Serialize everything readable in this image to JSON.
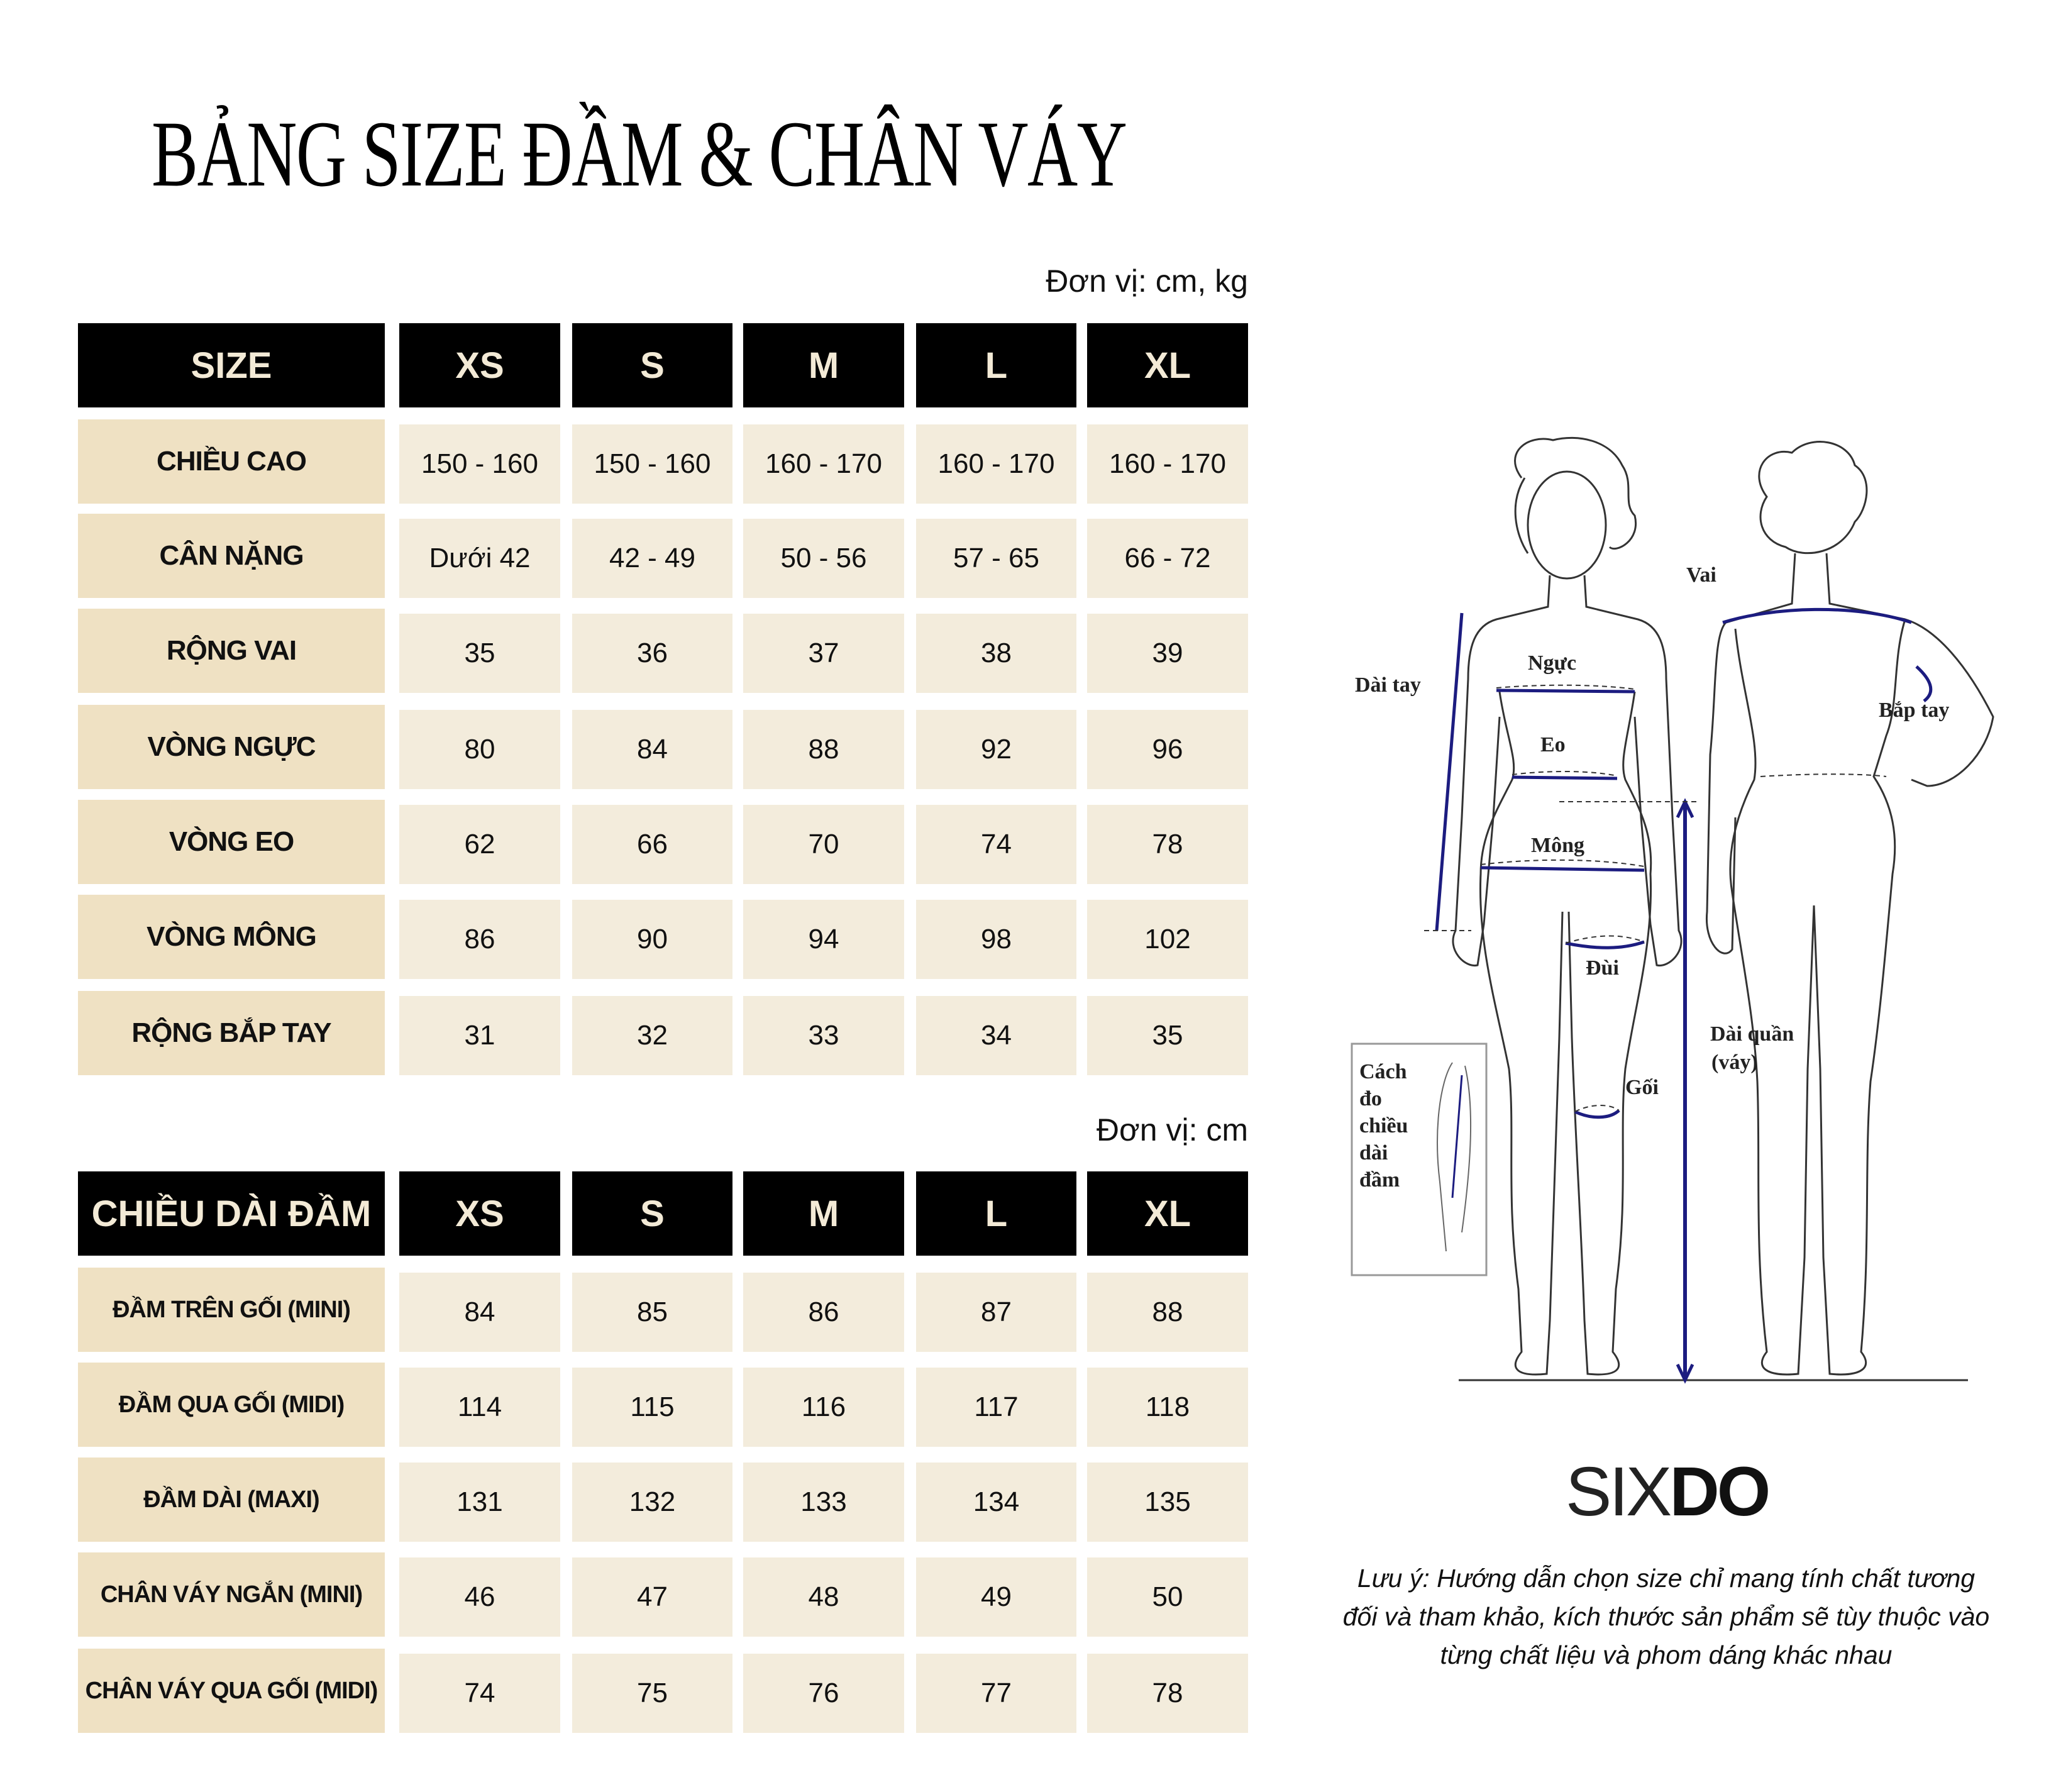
{
  "title": "BẢNG SIZE ĐẦM & CHÂN VÁY",
  "table1": {
    "unit": "Đơn vị: cm, kg",
    "header": [
      "SIZE",
      "XS",
      "S",
      "M",
      "L",
      "XL"
    ],
    "rows": [
      {
        "label": "CHIỀU CAO",
        "values": [
          "150 - 160",
          "150 - 160",
          "160 - 170",
          "160 - 170",
          "160 - 170"
        ]
      },
      {
        "label": "CÂN NẶNG",
        "values": [
          "Dưới 42",
          "42 - 49",
          "50 - 56",
          "57 - 65",
          "66 - 72"
        ]
      },
      {
        "label": "RỘNG VAI",
        "values": [
          "35",
          "36",
          "37",
          "38",
          "39"
        ]
      },
      {
        "label": "VÒNG NGỰC",
        "values": [
          "80",
          "84",
          "88",
          "92",
          "96"
        ]
      },
      {
        "label": "VÒNG EO",
        "values": [
          "62",
          "66",
          "70",
          "74",
          "78"
        ]
      },
      {
        "label": "VÒNG MÔNG",
        "values": [
          "86",
          "90",
          "94",
          "98",
          "102"
        ]
      },
      {
        "label": "RỘNG BẮP TAY",
        "values": [
          "31",
          "32",
          "33",
          "34",
          "35"
        ]
      }
    ]
  },
  "table2": {
    "unit": "Đơn vị: cm",
    "header": [
      "CHIỀU DÀI ĐẦM",
      "XS",
      "S",
      "M",
      "L",
      "XL"
    ],
    "rows": [
      {
        "label": "ĐẦM TRÊN GỐI (MINI)",
        "values": [
          "84",
          "85",
          "86",
          "87",
          "88"
        ]
      },
      {
        "label": "ĐẦM QUA GỐI (MIDI)",
        "values": [
          "114",
          "115",
          "116",
          "117",
          "118"
        ]
      },
      {
        "label": "ĐẦM DÀI (MAXI)",
        "values": [
          "131",
          "132",
          "133",
          "134",
          "135"
        ]
      },
      {
        "label": "CHÂN VÁY NGẮN (MINI)",
        "values": [
          "46",
          "47",
          "48",
          "49",
          "50"
        ]
      },
      {
        "label": "CHÂN VÁY QUA GỐI (MIDI)",
        "values": [
          "74",
          "75",
          "76",
          "77",
          "78"
        ]
      }
    ]
  },
  "diagram": {
    "labels": {
      "vai": "Vai",
      "dai_tay": "Dài tay",
      "nguc": "Ngực",
      "bap_tay": "Bắp tay",
      "eo": "Eo",
      "mong": "Mông",
      "dui": "Đùi",
      "dai_quan_1": "Dài quần",
      "dai_quan_2": "(váy)",
      "goi": "Gối",
      "inset": [
        "Cách",
        "đo",
        "chiều",
        "dài",
        "đầm"
      ]
    },
    "measure_color": "#1c1c80"
  },
  "logo": {
    "thin": "SIX",
    "bold": "DO"
  },
  "note": "Lưu ý: Hướng dẫn chọn size chỉ mang tính chất tương đối và tham khảo, kích thước sản phẩm sẽ tùy thuộc vào từng chất liệu và phom dáng khác nhau",
  "colors": {
    "header_bg": "#000000",
    "header_text": "#f3ead6",
    "label_bg": "#efe1c3",
    "value_bg": "#f3ecdc"
  }
}
